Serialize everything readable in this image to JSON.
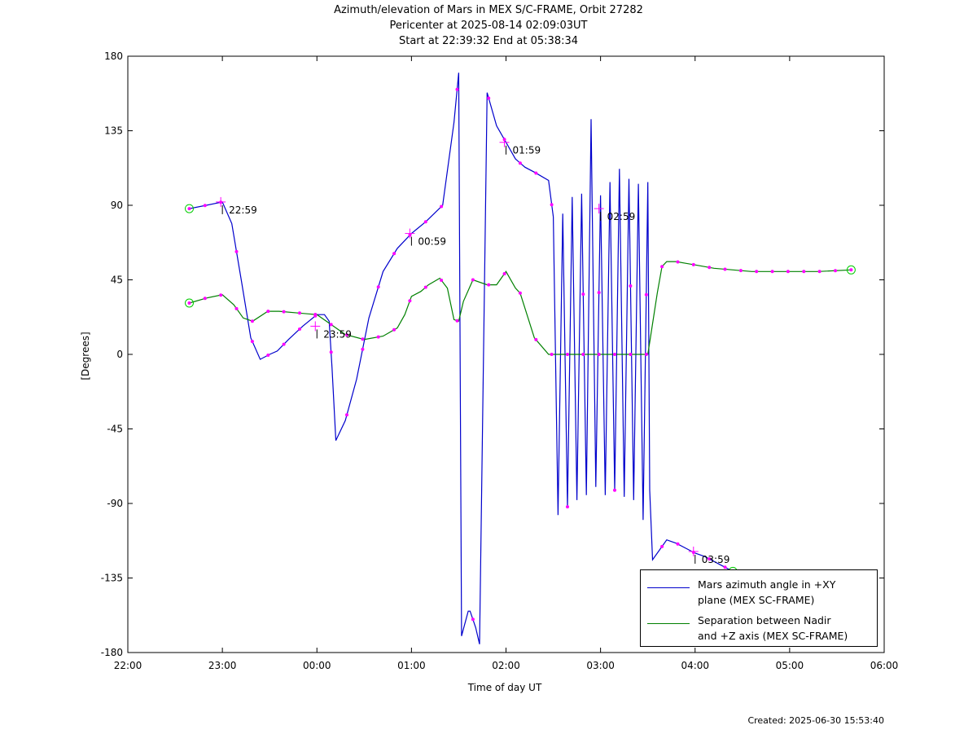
{
  "chart_data": {
    "type": "line",
    "title": "Azimuth/elevation of Mars in MEX S/C-FRAME,  Orbit 27282",
    "subtitle": [
      "Pericenter at 2025-08-14 02:09:03UT",
      "Start at 22:39:32 End at 05:38:34"
    ],
    "xlabel": "Time of day UT",
    "ylabel": "[Degrees]",
    "xlim": [
      22.0,
      30.0
    ],
    "ylim": [
      -180,
      180
    ],
    "xticks": [
      22,
      23,
      24,
      25,
      26,
      27,
      28,
      29,
      30
    ],
    "xtick_labels": [
      "22:00",
      "23:00",
      "00:00",
      "01:00",
      "02:00",
      "03:00",
      "04:00",
      "05:00",
      "06:00"
    ],
    "yticks": [
      180,
      135,
      90,
      45,
      0,
      -45,
      -90,
      -135,
      -180
    ],
    "ytick_labels": [
      "180",
      "135",
      "90",
      "45",
      "0",
      "-45",
      "-90",
      "-135",
      "-180"
    ],
    "grid": false,
    "legend_position": "bottom-right",
    "annotations": [
      {
        "label": "22:59",
        "x": 22.983,
        "y": 92
      },
      {
        "label": "23:59",
        "x": 23.983,
        "y": 17
      },
      {
        "label": "00:59",
        "x": 24.983,
        "y": 73
      },
      {
        "label": "01:59",
        "x": 25.983,
        "y": 128
      },
      {
        "label": "02:59",
        "x": 26.983,
        "y": 88
      },
      {
        "label": "03:59",
        "x": 27.983,
        "y": -119
      }
    ],
    "series": [
      {
        "name": "Mars azimuth angle in +XY plane (MEX SC-FRAME)",
        "color": "#0000cc",
        "x": [
          22.65,
          22.83,
          23.0,
          23.1,
          23.2,
          23.3,
          23.4,
          23.5,
          23.58,
          23.7,
          23.85,
          24.0,
          24.08,
          24.13,
          24.16,
          24.2,
          24.3,
          24.42,
          24.55,
          24.7,
          24.85,
          24.95,
          25.0,
          25.15,
          25.33,
          25.45,
          25.5,
          25.53,
          25.6,
          25.62,
          25.68,
          25.72,
          25.8,
          25.9,
          26.0,
          26.1,
          26.2,
          26.3,
          26.45,
          26.5,
          26.55,
          26.6,
          26.65,
          26.7,
          26.75,
          26.8,
          26.85,
          26.9,
          26.95,
          27.0,
          27.05,
          27.1,
          27.15,
          27.2,
          27.25,
          27.3,
          27.35,
          27.4,
          27.45,
          27.5,
          27.52,
          27.55,
          27.65,
          27.7,
          27.8,
          27.9,
          28.0,
          28.1,
          28.2,
          28.3,
          28.4
        ],
        "y": [
          88,
          90,
          92,
          79,
          45,
          10,
          -3,
          0,
          2,
          9,
          17,
          24,
          24,
          20,
          -8,
          -52,
          -40,
          -15,
          22,
          50,
          64,
          70,
          73,
          80,
          90,
          140,
          170,
          -170,
          -155,
          -155,
          -165,
          -175,
          158,
          138,
          128,
          118,
          113,
          110,
          105,
          83,
          -97,
          85,
          -92,
          95,
          -88,
          97,
          -85,
          142,
          -80,
          96,
          -85,
          104,
          -82,
          112,
          -86,
          106,
          -88,
          103,
          -100,
          104,
          -82,
          -124,
          -116,
          -112,
          -114,
          -117,
          -120,
          -122,
          -125,
          -128,
          -131
        ]
      },
      {
        "name": "Separation between Nadir and +Z axis (MEX SC-FRAME)",
        "color": "#008000",
        "x": [
          22.65,
          22.83,
          23.0,
          23.12,
          23.22,
          23.32,
          23.48,
          23.6,
          23.8,
          24.0,
          24.15,
          24.3,
          24.5,
          24.7,
          24.85,
          24.93,
          25.0,
          25.1,
          25.18,
          25.3,
          25.38,
          25.45,
          25.5,
          25.55,
          25.65,
          25.8,
          25.9,
          26.0,
          26.1,
          26.15,
          26.3,
          26.45,
          26.5,
          27.0,
          27.5,
          27.6,
          27.65,
          27.7,
          27.8,
          27.9,
          28.0,
          28.2,
          28.4,
          28.6,
          28.8,
          29.0,
          29.3,
          29.65
        ],
        "y": [
          31,
          34,
          36,
          30,
          22,
          20,
          26,
          26,
          25,
          24,
          18,
          12,
          9,
          11,
          16,
          24,
          35,
          38,
          42,
          46,
          40,
          21,
          20,
          32,
          45,
          42,
          42,
          50,
          40,
          37,
          10,
          0,
          0,
          0,
          0,
          37,
          53,
          56,
          56,
          55,
          54,
          52,
          51,
          50,
          50,
          50,
          50,
          51
        ]
      }
    ]
  },
  "legend": [
    {
      "line1": "Mars azimuth angle in +XY",
      "line2": "plane (MEX SC-FRAME)",
      "color": "#0000cc"
    },
    {
      "line1": "Separation between Nadir",
      "line2": "and +Z axis (MEX SC-FRAME)",
      "color": "#008000"
    }
  ],
  "footer": "Created: 2025-06-30 15:53:40"
}
